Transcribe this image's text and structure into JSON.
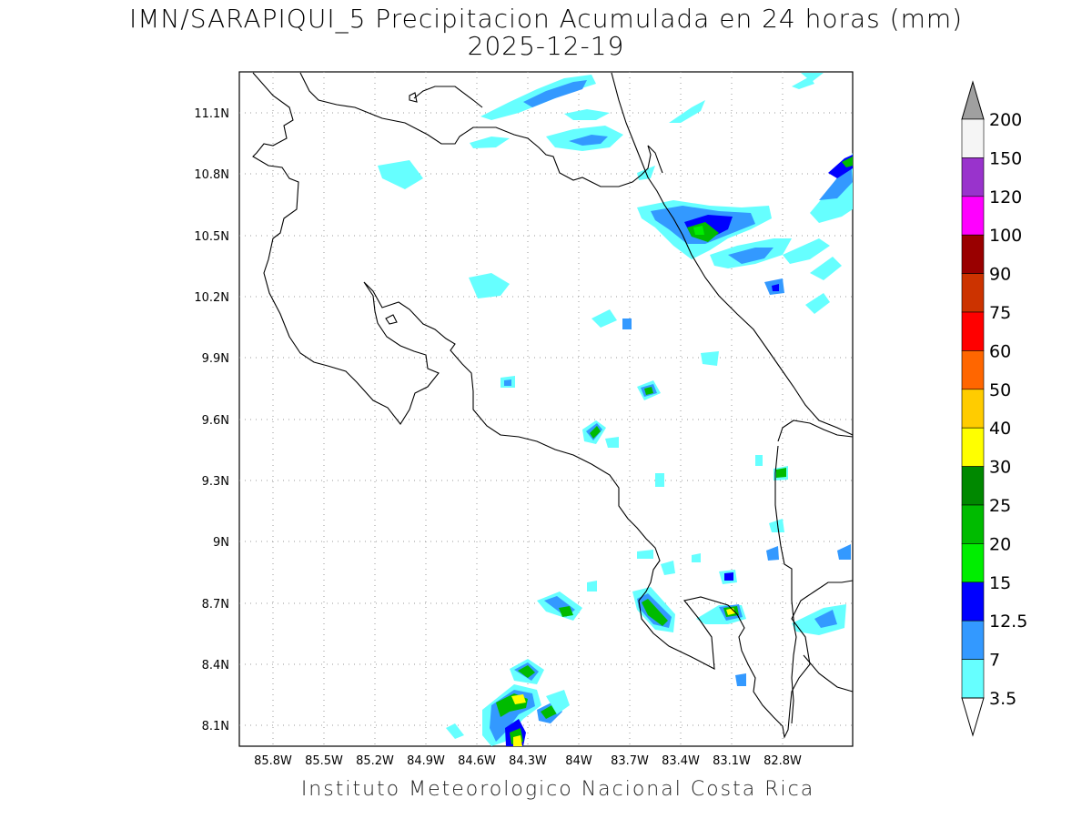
{
  "title": "IMN/SARAPIQUI_5 Precipitacion Acumulada en 24 horas (mm)",
  "date": "2025-12-19",
  "footer": "Instituto Meteorologico Nacional Costa Rica",
  "map": {
    "lon_range": [
      -86.1,
      -83.0
    ],
    "lat_range": [
      8.0,
      11.3
    ],
    "lon_ticks": [
      "85.8W",
      "85.5W",
      "85.2W",
      "84.9W",
      "84.6W",
      "84.3W",
      "84W",
      "83.7W",
      "83.4W",
      "83.1W",
      "82.8W"
    ],
    "lat_ticks": [
      "11.1N",
      "10.8N",
      "10.5N",
      "10.2N",
      "9.9N",
      "9.6N",
      "9.3N",
      "9N",
      "8.7N",
      "8.4N",
      "8.1N"
    ],
    "grid": "dotted"
  },
  "legend": {
    "labels": [
      "200",
      "150",
      "120",
      "100",
      "90",
      "75",
      "60",
      "50",
      "40",
      "30",
      "25",
      "20",
      "15",
      "12.5",
      "7",
      "3.5"
    ],
    "colors": [
      "#a0a0a0",
      "#f5f5f5",
      "#9933cc",
      "#ff00ff",
      "#990000",
      "#cc3300",
      "#ff0000",
      "#ff6600",
      "#ffcc00",
      "#ffff00",
      "#008800",
      "#00bb00",
      "#00ee00",
      "#0000ff",
      "#3399ff",
      "#66ffff"
    ]
  }
}
